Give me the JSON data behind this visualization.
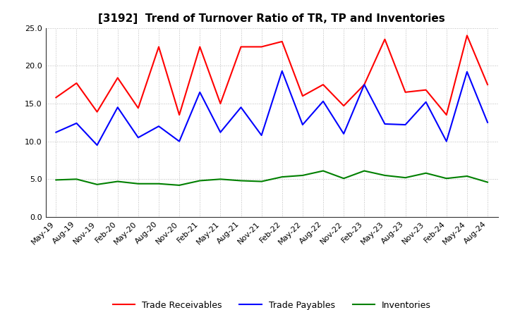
{
  "title": "[3192]  Trend of Turnover Ratio of TR, TP and Inventories",
  "x_labels": [
    "May-19",
    "Aug-19",
    "Nov-19",
    "Feb-20",
    "May-20",
    "Aug-20",
    "Nov-20",
    "Feb-21",
    "May-21",
    "Aug-21",
    "Nov-21",
    "Feb-22",
    "May-22",
    "Aug-22",
    "Nov-22",
    "Feb-23",
    "May-23",
    "Aug-23",
    "Nov-23",
    "Feb-24",
    "May-24",
    "Aug-24"
  ],
  "trade_receivables": [
    15.8,
    17.7,
    13.9,
    18.4,
    14.4,
    22.5,
    13.5,
    22.5,
    15.0,
    22.5,
    22.5,
    23.2,
    16.0,
    17.5,
    14.7,
    17.5,
    23.5,
    16.5,
    16.8,
    13.5,
    24.0,
    17.5
  ],
  "trade_payables": [
    11.2,
    12.4,
    9.5,
    14.5,
    10.5,
    12.0,
    10.0,
    16.5,
    11.2,
    14.5,
    10.8,
    19.3,
    12.2,
    15.3,
    11.0,
    17.5,
    12.3,
    12.2,
    15.2,
    10.0,
    19.2,
    12.5
  ],
  "inventories": [
    4.9,
    5.0,
    4.3,
    4.7,
    4.4,
    4.4,
    4.2,
    4.8,
    5.0,
    4.8,
    4.7,
    5.3,
    5.5,
    6.1,
    5.1,
    6.1,
    5.5,
    5.2,
    5.8,
    5.1,
    5.4,
    4.6
  ],
  "tr_color": "#ff0000",
  "tp_color": "#0000ff",
  "inv_color": "#008000",
  "ylim": [
    0.0,
    25.0
  ],
  "yticks": [
    0.0,
    5.0,
    10.0,
    15.0,
    20.0,
    25.0
  ],
  "legend_labels": [
    "Trade Receivables",
    "Trade Payables",
    "Inventories"
  ],
  "bg_color": "#ffffff",
  "grid_color": "#bbbbbb",
  "title_fontsize": 11,
  "tick_fontsize": 8,
  "legend_fontsize": 9,
  "linewidth": 1.5
}
